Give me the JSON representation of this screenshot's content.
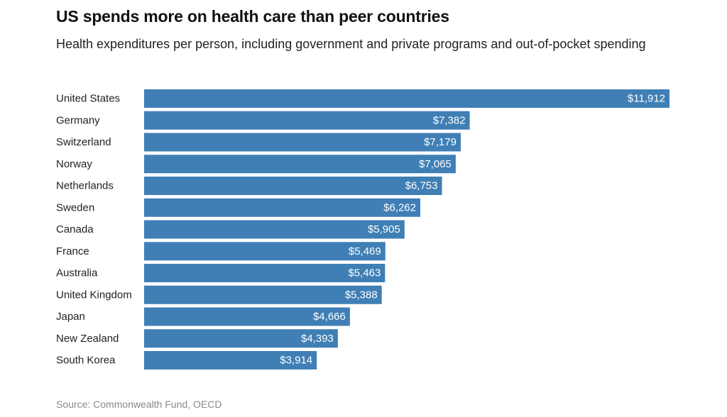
{
  "title": "US spends more on health care than peer countries",
  "subtitle": "Health expenditures per person, including government and private programs and out-of-pocket spending",
  "source": "Source: Commonwealth Fund, OECD",
  "colors": {
    "bar": "#3f7fb5",
    "bar_label": "#ffffff",
    "category_label": "#222222"
  },
  "chart_data": {
    "type": "bar",
    "orientation": "horizontal",
    "title": "US spends more on health care than peer countries",
    "subtitle": "Health expenditures per person, including government and private programs and out-of-pocket spending",
    "categories": [
      "United States",
      "Germany",
      "Switzerland",
      "Norway",
      "Netherlands",
      "Sweden",
      "Canada",
      "France",
      "Australia",
      "United Kingdom",
      "Japan",
      "New Zealand",
      "South Korea"
    ],
    "values": [
      11912,
      7382,
      7179,
      7065,
      6753,
      6262,
      5905,
      5469,
      5463,
      5388,
      4666,
      4393,
      3914
    ],
    "value_labels": [
      "$11,912",
      "$7,382",
      "$7,179",
      "$7,065",
      "$6,753",
      "$6,262",
      "$5,905",
      "$5,469",
      "$5,463",
      "$5,388",
      "$4,666",
      "$4,393",
      "$3,914"
    ],
    "xlim": [
      0,
      11912
    ],
    "grid": false,
    "legend": "none"
  }
}
